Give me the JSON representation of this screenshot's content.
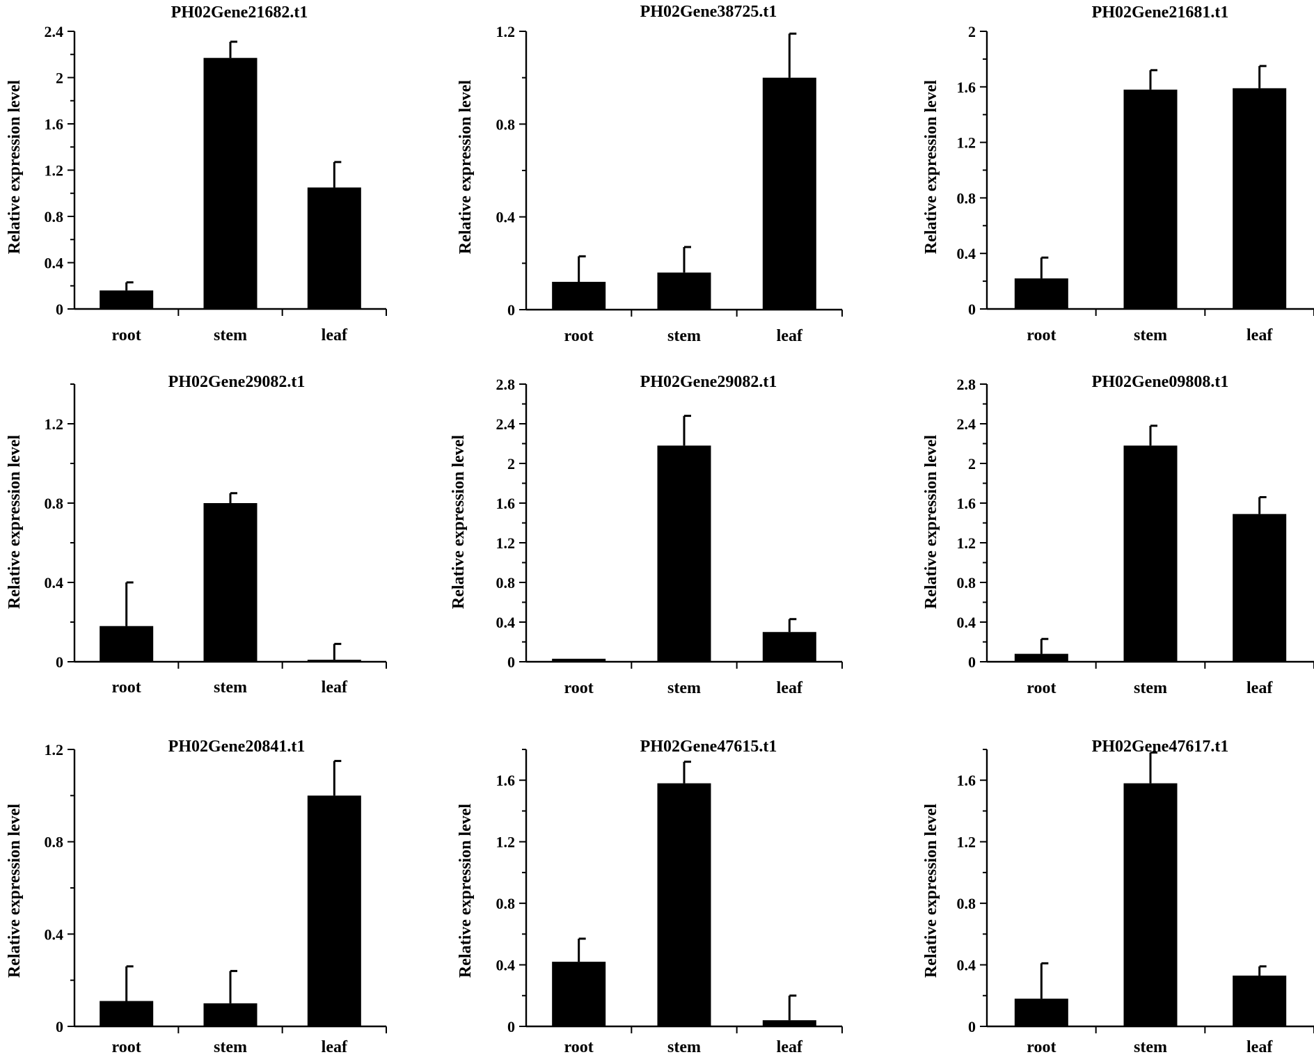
{
  "chart_data": [
    {
      "type": "bar",
      "title": "PH02Gene21682.t1",
      "ylabel": "Relative expression level",
      "xlabel": "",
      "categories": [
        "root",
        "stem",
        "leaf"
      ],
      "values": [
        0.16,
        2.17,
        1.05
      ],
      "errors": [
        0.07,
        0.14,
        0.22
      ],
      "ylim": [
        0,
        2.4
      ],
      "yticks": [
        0,
        0.4,
        0.8,
        1.2,
        1.6,
        2,
        2.4
      ],
      "yticklabels": [
        "0",
        "0.4",
        "0.8",
        "1.2",
        "1.6",
        "2",
        "2.4"
      ]
    },
    {
      "type": "bar",
      "title": "PH02Gene38725.t1",
      "ylabel": "Relative expression level",
      "xlabel": "",
      "categories": [
        "root",
        "stem",
        "leaf"
      ],
      "values": [
        0.12,
        0.16,
        1.0
      ],
      "errors": [
        0.11,
        0.11,
        0.19
      ],
      "ylim": [
        0,
        1.2
      ],
      "yticks": [
        0,
        0.4,
        0.8,
        1.2
      ],
      "yticklabels": [
        "0",
        "0.4",
        "0.8",
        "1.2"
      ]
    },
    {
      "type": "bar",
      "title": "PH02Gene21681.t1",
      "ylabel": "Relative expression level",
      "xlabel": "",
      "categories": [
        "root",
        "stem",
        "leaf"
      ],
      "values": [
        0.22,
        1.58,
        1.59
      ],
      "errors": [
        0.15,
        0.14,
        0.16
      ],
      "ylim": [
        0,
        2
      ],
      "yticks": [
        0,
        0.4,
        0.8,
        1.2,
        1.6,
        2
      ],
      "yticklabels": [
        "0",
        "0.4",
        "0.8",
        "1.2",
        "1.6",
        "2"
      ]
    },
    {
      "type": "bar",
      "title": "PH02Gene29082.t1",
      "ylabel": "Relative expression level",
      "xlabel": "",
      "categories": [
        "root",
        "stem",
        "leaf"
      ],
      "values": [
        0.18,
        0.8,
        0.01
      ],
      "errors": [
        0.22,
        0.05,
        0.08
      ],
      "ylim": [
        0,
        1.4
      ],
      "yticks": [
        0,
        0.4,
        0.8,
        1.2
      ],
      "yticklabels": [
        "0",
        "0.4",
        "0.8",
        "1.2"
      ]
    },
    {
      "type": "bar",
      "title": "PH02Gene29082.t1",
      "ylabel": "Relative expression level",
      "xlabel": "",
      "categories": [
        "root",
        "stem",
        "leaf"
      ],
      "values": [
        0.03,
        2.18,
        0.3
      ],
      "errors": [
        0.0,
        0.3,
        0.13
      ],
      "ylim": [
        0,
        2.8
      ],
      "yticks": [
        0,
        0.4,
        0.8,
        1.2,
        1.6,
        2,
        2.4,
        2.8
      ],
      "yticklabels": [
        "0",
        "0.4",
        "0.8",
        "1.2",
        "1.6",
        "2",
        "2.4",
        "2.8"
      ]
    },
    {
      "type": "bar",
      "title": "PH02Gene09808.t1",
      "ylabel": "Relative expression level",
      "xlabel": "",
      "categories": [
        "root",
        "stem",
        "leaf"
      ],
      "values": [
        0.08,
        2.18,
        1.49
      ],
      "errors": [
        0.15,
        0.2,
        0.17
      ],
      "ylim": [
        0,
        2.8
      ],
      "yticks": [
        0,
        0.4,
        0.8,
        1.2,
        1.6,
        2,
        2.4,
        2.8
      ],
      "yticklabels": [
        "0",
        "0.4",
        "0.8",
        "1.2",
        "1.6",
        "2",
        "2.4",
        "2.8"
      ]
    },
    {
      "type": "bar",
      "title": "PH02Gene20841.t1",
      "ylabel": "Relative expression level",
      "xlabel": "",
      "categories": [
        "root",
        "stem",
        "leaf"
      ],
      "values": [
        0.11,
        0.1,
        1.0
      ],
      "errors": [
        0.15,
        0.14,
        0.15
      ],
      "ylim": [
        0,
        1.2
      ],
      "yticks": [
        0,
        0.4,
        0.8,
        1.2
      ],
      "yticklabels": [
        "0",
        "0.4",
        "0.8",
        "1.2"
      ]
    },
    {
      "type": "bar",
      "title": "PH02Gene47615.t1",
      "ylabel": "Relative expression level",
      "xlabel": "",
      "categories": [
        "root",
        "stem",
        "leaf"
      ],
      "values": [
        0.42,
        1.58,
        0.04
      ],
      "errors": [
        0.15,
        0.14,
        0.16
      ],
      "ylim": [
        0,
        1.8
      ],
      "yticks": [
        0,
        0.4,
        0.8,
        1.2,
        1.6
      ],
      "yticklabels": [
        "0",
        "0.4",
        "0.8",
        "1.2",
        "1.6"
      ]
    },
    {
      "type": "bar",
      "title": "PH02Gene47617.t1",
      "ylabel": "Relative expression level",
      "xlabel": "",
      "categories": [
        "root",
        "stem",
        "leaf"
      ],
      "values": [
        0.18,
        1.58,
        0.33
      ],
      "errors": [
        0.23,
        0.2,
        0.06
      ],
      "ylim": [
        0,
        1.8
      ],
      "yticks": [
        0,
        0.4,
        0.8,
        1.2,
        1.6
      ],
      "yticklabels": [
        "0",
        "0.4",
        "0.8",
        "1.2",
        "1.6"
      ]
    }
  ]
}
